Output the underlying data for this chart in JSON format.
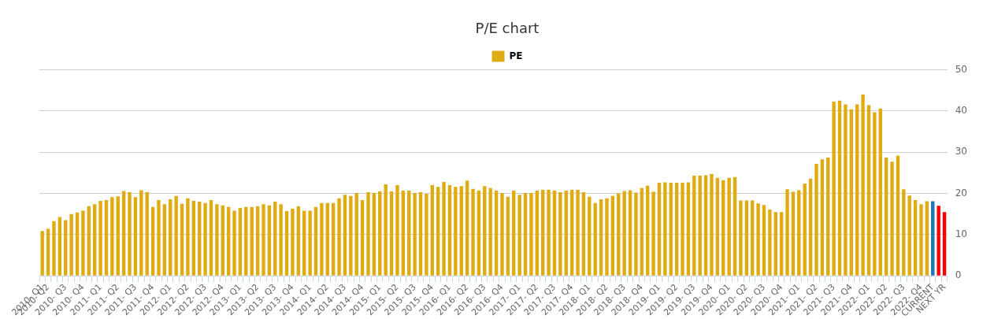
{
  "chart_data": {
    "type": "bar",
    "title": "P/E chart",
    "categories": [
      "2010- Q1",
      "2010- Q2",
      null,
      null,
      "2010- Q3",
      null,
      null,
      "2010- Q4",
      null,
      null,
      "2011- Q1",
      null,
      null,
      "2011- Q2",
      null,
      null,
      "2011- Q3",
      null,
      null,
      "2011- Q4",
      null,
      null,
      "2012- Q1",
      null,
      null,
      "2012- Q2",
      null,
      null,
      "2012- Q3",
      null,
      null,
      "2012- Q4",
      null,
      null,
      "2013- Q1",
      null,
      null,
      "2013- Q2",
      null,
      null,
      "2013- Q3",
      null,
      null,
      "2013- Q4",
      null,
      null,
      "2014- Q1",
      null,
      null,
      "2014- Q2",
      null,
      null,
      "2014- Q3",
      null,
      null,
      "2014- Q4",
      null,
      null,
      "2015- Q1",
      null,
      null,
      "2015- Q2",
      null,
      null,
      "2015- Q3",
      null,
      null,
      "2015- Q4",
      null,
      null,
      "2016- Q1",
      null,
      null,
      "2016- Q2",
      null,
      null,
      "2016- Q3",
      null,
      null,
      "2016- Q4",
      null,
      null,
      "2017- Q1",
      null,
      null,
      "2017- Q2",
      null,
      null,
      "2017- Q3",
      null,
      null,
      "2017- Q4",
      null,
      null,
      "2018- Q1",
      null,
      null,
      "2018- Q2",
      null,
      null,
      "2018- Q3",
      null,
      null,
      "2018- Q4",
      null,
      null,
      "2019- Q1",
      null,
      null,
      "2019- Q2",
      null,
      null,
      "2019- Q3",
      null,
      null,
      "2019- Q4",
      null,
      null,
      "2020- Q1",
      null,
      null,
      "2020- Q2",
      null,
      null,
      "2020- Q3",
      null,
      null,
      "2020- Q4",
      null,
      null,
      "2021- Q1",
      null,
      null,
      "2021- Q2",
      null,
      null,
      "2021- Q3",
      null,
      null,
      "2021- Q4",
      null,
      null,
      "2022- Q1",
      null,
      null,
      "2022- Q2",
      null,
      null,
      "2022- Q3",
      null,
      null,
      "2022- Q4",
      null,
      "CURRENT",
      null,
      "NEXT YR"
    ],
    "series": [
      {
        "name": "PE",
        "color": "#e0ac14",
        "colors": [
          "#e0ac14",
          "#e0ac14",
          "#e0ac14",
          "#e0ac14",
          "#e0ac14",
          "#e0ac14",
          "#e0ac14",
          "#e0ac14",
          "#e0ac14",
          "#e0ac14",
          "#e0ac14",
          "#e0ac14",
          "#e0ac14",
          "#e0ac14",
          "#e0ac14",
          "#e0ac14",
          "#e0ac14",
          "#e0ac14",
          "#e0ac14",
          "#e0ac14",
          "#e0ac14",
          "#e0ac14",
          "#e0ac14",
          "#e0ac14",
          "#e0ac14",
          "#e0ac14",
          "#e0ac14",
          "#e0ac14",
          "#e0ac14",
          "#e0ac14",
          "#e0ac14",
          "#e0ac14",
          "#e0ac14",
          "#e0ac14",
          "#e0ac14",
          "#e0ac14",
          "#e0ac14",
          "#e0ac14",
          "#e0ac14",
          "#e0ac14",
          "#e0ac14",
          "#e0ac14",
          "#e0ac14",
          "#e0ac14",
          "#e0ac14",
          "#e0ac14",
          "#e0ac14",
          "#e0ac14",
          "#e0ac14",
          "#e0ac14",
          "#e0ac14",
          "#e0ac14",
          "#e0ac14",
          "#e0ac14",
          "#e0ac14",
          "#e0ac14",
          "#e0ac14",
          "#e0ac14",
          "#e0ac14",
          "#e0ac14",
          "#e0ac14",
          "#e0ac14",
          "#e0ac14",
          "#e0ac14",
          "#e0ac14",
          "#e0ac14",
          "#e0ac14",
          "#e0ac14",
          "#e0ac14",
          "#e0ac14",
          "#e0ac14",
          "#e0ac14",
          "#e0ac14",
          "#e0ac14",
          "#e0ac14",
          "#e0ac14",
          "#e0ac14",
          "#e0ac14",
          "#e0ac14",
          "#e0ac14",
          "#e0ac14",
          "#e0ac14",
          "#e0ac14",
          "#e0ac14",
          "#e0ac14",
          "#e0ac14",
          "#e0ac14",
          "#e0ac14",
          "#e0ac14",
          "#e0ac14",
          "#e0ac14",
          "#e0ac14",
          "#e0ac14",
          "#e0ac14",
          "#e0ac14",
          "#e0ac14",
          "#e0ac14",
          "#e0ac14",
          "#e0ac14",
          "#e0ac14",
          "#e0ac14",
          "#e0ac14",
          "#e0ac14",
          "#e0ac14",
          "#e0ac14",
          "#e0ac14",
          "#e0ac14",
          "#e0ac14",
          "#e0ac14",
          "#e0ac14",
          "#e0ac14",
          "#e0ac14",
          "#e0ac14",
          "#e0ac14",
          "#e0ac14",
          "#e0ac14",
          "#e0ac14",
          "#e0ac14",
          "#e0ac14",
          "#e0ac14",
          "#e0ac14",
          "#e0ac14",
          "#e0ac14",
          "#e0ac14",
          "#e0ac14",
          "#e0ac14",
          "#e0ac14",
          "#e0ac14",
          "#e0ac14",
          "#e0ac14",
          "#e0ac14",
          "#e0ac14",
          "#e0ac14",
          "#e0ac14",
          "#e0ac14",
          "#e0ac14",
          "#e0ac14",
          "#e0ac14",
          "#e0ac14",
          "#e0ac14",
          "#e0ac14",
          "#e0ac14",
          "#e0ac14",
          "#e0ac14",
          "#e0ac14",
          "#e0ac14",
          "#e0ac14",
          "#e0ac14",
          "#e0ac14",
          "#e0ac14",
          "#e0ac14",
          "#e0ac14",
          "#e0ac14",
          "#1f77b4",
          "#ff0000",
          "#ff0000"
        ],
        "values": [
          10.9,
          11.4,
          13.3,
          14.3,
          13.5,
          15.0,
          15.4,
          15.8,
          16.9,
          17.4,
          18.2,
          18.4,
          19.1,
          19.3,
          20.6,
          20.3,
          19.1,
          20.8,
          20.3,
          16.7,
          18.4,
          17.4,
          18.6,
          19.4,
          17.5,
          18.8,
          18.2,
          18.0,
          17.7,
          18.4,
          17.4,
          17.1,
          16.7,
          15.8,
          16.5,
          16.7,
          16.7,
          16.9,
          17.4,
          17.1,
          18.0,
          17.4,
          15.7,
          16.3,
          16.9,
          15.8,
          15.8,
          16.7,
          17.7,
          17.7,
          17.7,
          18.8,
          19.7,
          19.4,
          20.1,
          18.4,
          20.3,
          20.1,
          20.5,
          22.2,
          20.5,
          22.0,
          20.7,
          20.7,
          20.1,
          20.3,
          19.9,
          22.0,
          21.6,
          22.8,
          22.0,
          21.6,
          21.8,
          23.1,
          21.1,
          20.7,
          21.8,
          21.3,
          20.7,
          20.1,
          19.2,
          20.7,
          19.7,
          20.1,
          20.1,
          20.7,
          20.9,
          20.9,
          20.7,
          20.3,
          20.7,
          20.9,
          20.9,
          20.3,
          19.2,
          17.7,
          18.6,
          18.8,
          19.4,
          20.0,
          20.6,
          20.8,
          20.2,
          21.3,
          21.9,
          20.4,
          22.6,
          22.7,
          22.6,
          22.6,
          22.6,
          22.7,
          24.3,
          24.3,
          24.4,
          24.7,
          23.8,
          23.2,
          23.8,
          24.0,
          18.3,
          18.3,
          18.3,
          17.6,
          17.2,
          16.1,
          15.5,
          15.5,
          21.0,
          20.4,
          20.8,
          22.4,
          23.6,
          27.2,
          28.3,
          28.7,
          42.3,
          42.5,
          41.6,
          40.4,
          41.6,
          44.0,
          41.4,
          39.7,
          40.6,
          28.7,
          27.7,
          29.2,
          21.0,
          19.5,
          18.4,
          17.4,
          18.1,
          18.1,
          17.0,
          15.5
        ]
      }
    ],
    "ylim": [
      0,
      50
    ],
    "yticks": [
      0,
      10,
      20,
      30,
      40,
      50
    ],
    "grid": "y",
    "legend": "top"
  }
}
